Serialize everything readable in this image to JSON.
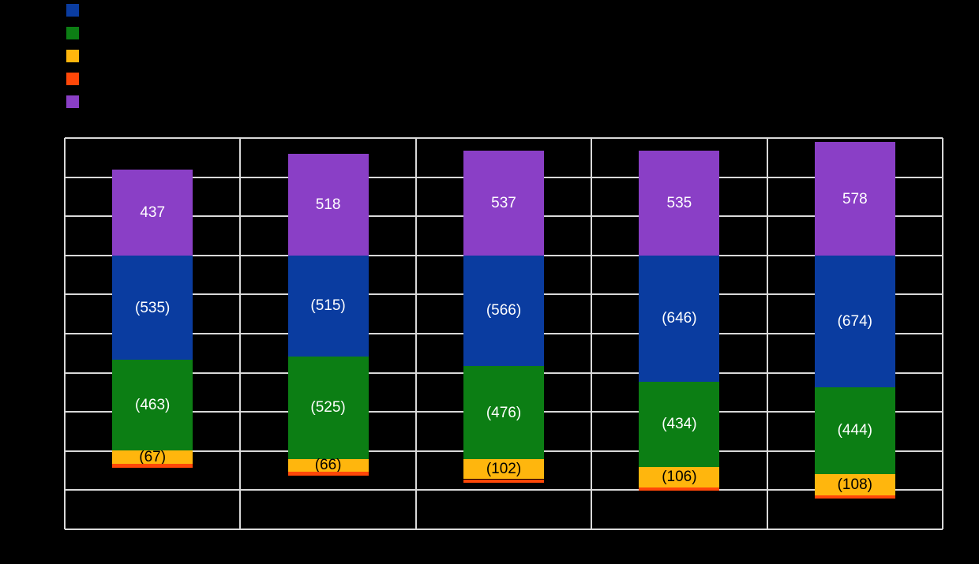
{
  "page": {
    "background": "#000000"
  },
  "legend": {
    "position": "top-left",
    "labels_visible": false,
    "items": [
      {
        "label": "",
        "color": "#0A3CA0",
        "color_name": "blue"
      },
      {
        "label": "",
        "color": "#0C7E14",
        "color_name": "green"
      },
      {
        "label": "",
        "color": "#FFB60D",
        "color_name": "amber"
      },
      {
        "label": "",
        "color": "#FF4708",
        "color_name": "orange-red"
      },
      {
        "label": "",
        "color": "#8A3FC6",
        "color_name": "purple"
      }
    ]
  },
  "chart_data": {
    "type": "bar",
    "stacked": true,
    "title": "",
    "xlabel": "",
    "ylabel": "",
    "categories": [
      "",
      "",
      "",
      "",
      ""
    ],
    "ylim": [
      -1400,
      600
    ],
    "ytick_step": 200,
    "grid": true,
    "gridline_color": "#D9D9D9",
    "legend_position": "top-left",
    "series": [
      {
        "name": "",
        "color_name": "blue",
        "color": "#0A3CA0",
        "values": [
          -535,
          -515,
          -566,
          -646,
          -674
        ],
        "labels": [
          "(535)",
          "(515)",
          "(566)",
          "(646)",
          "(674)"
        ],
        "label_color": "#FFFFFF"
      },
      {
        "name": "",
        "color_name": "green",
        "color": "#0C7E14",
        "values": [
          -463,
          -525,
          -476,
          -434,
          -444
        ],
        "labels": [
          "(463)",
          "(525)",
          "(476)",
          "(434)",
          "(444)"
        ],
        "label_color": "#FFFFFF"
      },
      {
        "name": "",
        "color_name": "amber",
        "color": "#FFB60D",
        "values": [
          -67,
          -66,
          -102,
          -106,
          -108
        ],
        "labels": [
          "(67)",
          "(66)",
          "(102)",
          "(106)",
          "(108)"
        ],
        "label_color": "#000000"
      },
      {
        "name": "",
        "color_name": "orange-red",
        "color": "#FF4708",
        "values": [
          -19,
          -18,
          -18,
          -18,
          -18
        ],
        "values_estimated": true,
        "labels": [
          "",
          "",
          "",
          "",
          ""
        ],
        "label_color": "#000000"
      },
      {
        "name": "",
        "color_name": "purple",
        "color": "#8A3FC6",
        "values": [
          437,
          518,
          537,
          535,
          578
        ],
        "labels": [
          "437",
          "518",
          "537",
          "535",
          "578"
        ],
        "label_color": "#FFFFFF"
      }
    ]
  }
}
